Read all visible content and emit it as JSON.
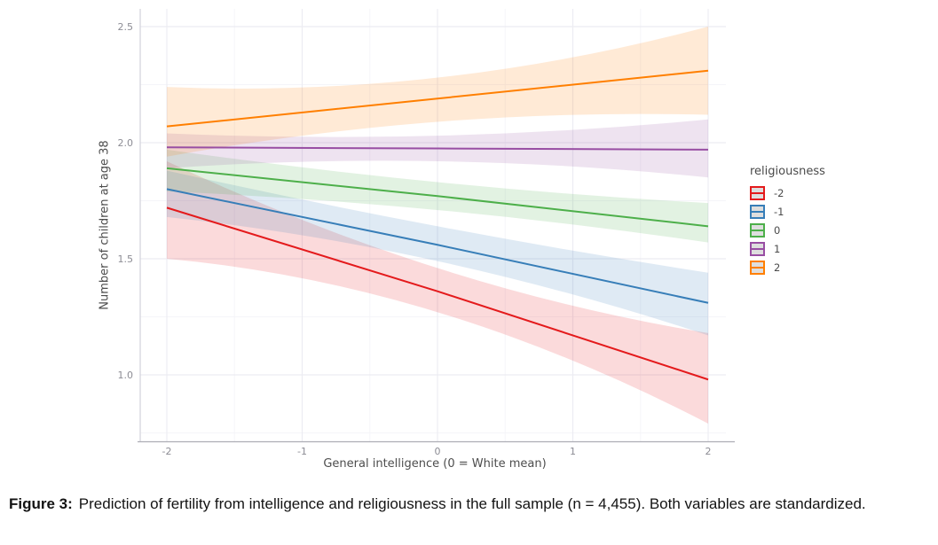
{
  "figure": {
    "caption_label": "Figure 3:",
    "caption_text": "Prediction of fertility from intelligence and religiousness in the full sample (n = 4,455). Both variables are standardized."
  },
  "chart_data": {
    "type": "line",
    "title": "",
    "xlabel": "General intelligence (0 = White mean)",
    "ylabel": "Number of children at age 38",
    "legend_title": "religiousness",
    "legend_position": "right",
    "grid": "major and minor, light grey on white",
    "xlim": [
      -2.2,
      2.13
    ],
    "ylim": [
      0.71,
      2.58
    ],
    "x_ticks": [
      -2,
      -1,
      0,
      1,
      2
    ],
    "y_ticks": [
      1.0,
      1.5,
      2.0,
      2.5
    ],
    "x": [
      -2,
      0,
      2
    ],
    "ribbon_alpha": 0.16,
    "series": [
      {
        "name": "-2",
        "color": "#E41A1C",
        "values": [
          1.72,
          1.36,
          0.98
        ],
        "ribbon_upper": [
          1.92,
          1.46,
          1.18
        ],
        "ribbon_lower": [
          1.5,
          1.27,
          0.79
        ]
      },
      {
        "name": "-1",
        "color": "#377EB8",
        "values": [
          1.8,
          1.56,
          1.31
        ],
        "ribbon_upper": [
          1.88,
          1.64,
          1.44
        ],
        "ribbon_lower": [
          1.68,
          1.49,
          1.17
        ]
      },
      {
        "name": "0",
        "color": "#4DAF4A",
        "values": [
          1.89,
          1.77,
          1.64
        ],
        "ribbon_upper": [
          1.97,
          1.83,
          1.74
        ],
        "ribbon_lower": [
          1.79,
          1.71,
          1.57
        ]
      },
      {
        "name": "1",
        "color": "#984EA3",
        "values": [
          1.98,
          1.975,
          1.97
        ],
        "ribbon_upper": [
          2.04,
          2.03,
          2.1
        ],
        "ribbon_lower": [
          1.89,
          1.92,
          1.85
        ]
      },
      {
        "name": "2",
        "color": "#FF7F00",
        "values": [
          2.07,
          2.19,
          2.31
        ],
        "ribbon_upper": [
          2.24,
          2.28,
          2.5
        ],
        "ribbon_lower": [
          1.94,
          2.09,
          2.12
        ]
      }
    ]
  },
  "style": {
    "major_grid_color": "#ECECF2",
    "minor_grid_color": "#F5F5F9",
    "x_axis_line_color": "#ADADB5",
    "y_axis_line_color": "#D2D2DA",
    "tick_label_color": "#8C8C94",
    "legend_key_fill": "#DEDEDE"
  }
}
